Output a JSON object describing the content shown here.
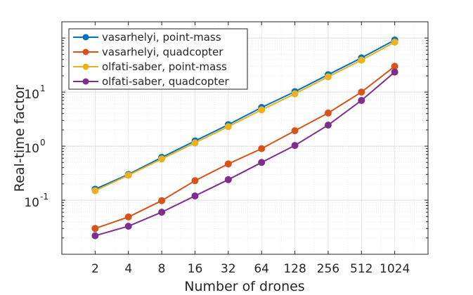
{
  "chart_data": {
    "type": "line",
    "title": "",
    "xlabel": "Number of drones",
    "ylabel": "Real-time factor",
    "x_scale": "log2",
    "y_scale": "log10",
    "xlim": [
      1,
      2048
    ],
    "ylim": [
      0.01,
      200
    ],
    "grid": true,
    "legend_position": "top-left",
    "x": [
      2,
      4,
      8,
      16,
      32,
      64,
      128,
      256,
      512,
      1024
    ],
    "x_tick_labels": [
      "2",
      "4",
      "8",
      "16",
      "32",
      "64",
      "128",
      "256",
      "512",
      "1024"
    ],
    "y_ticks": [
      {
        "base": "10",
        "exp": "-1",
        "value": 0.1
      },
      {
        "base": "10",
        "exp": "0",
        "value": 1
      },
      {
        "base": "10",
        "exp": "1",
        "value": 10
      }
    ],
    "series": [
      {
        "name": "vasarhelyi, point-mass",
        "color": "#0072BD",
        "values": [
          0.16,
          0.3,
          0.62,
          1.25,
          2.5,
          5.2,
          10.2,
          21.0,
          43.0,
          92.0
        ]
      },
      {
        "name": "vasarhelyi, quadcopter",
        "color": "#D95319",
        "values": [
          0.03,
          0.049,
          0.098,
          0.23,
          0.47,
          0.9,
          1.93,
          4.1,
          10.0,
          30.0
        ]
      },
      {
        "name": "olfati-saber, point-mass",
        "color": "#EDB120",
        "values": [
          0.15,
          0.29,
          0.58,
          1.15,
          2.3,
          4.7,
          9.3,
          19.2,
          39.0,
          84.0
        ]
      },
      {
        "name": "olfati-saber, quadcopter",
        "color": "#7E2F8E",
        "values": [
          0.022,
          0.033,
          0.06,
          0.12,
          0.24,
          0.5,
          1.03,
          2.45,
          7.0,
          23.5
        ]
      }
    ]
  }
}
